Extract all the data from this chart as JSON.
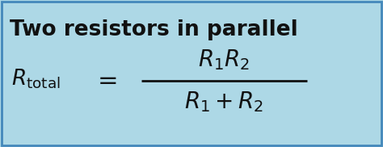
{
  "background_color": "#add8e6",
  "border_color": "#4488bb",
  "title_text": "Two resistors in parallel",
  "title_fontsize": 19,
  "formula_color": "#111111",
  "fig_width": 4.74,
  "fig_height": 1.82,
  "dpi": 100
}
